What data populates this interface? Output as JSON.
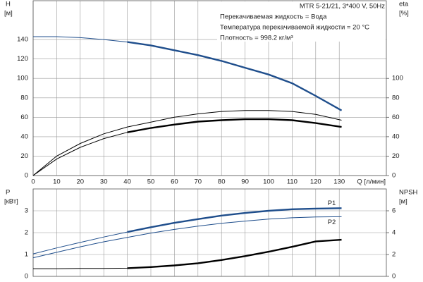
{
  "chart_data": [
    {
      "type": "line",
      "ylabel": "H",
      "yunit": "[м]",
      "y2label": "eta",
      "y2unit": "[%]",
      "xlabel": "Q [л/мин]",
      "annotations": [
        "MTR 5-21/21, 3*400 V, 50Hz",
        "Перекачиваемая жидкость = Вода",
        "Температура перекачиваемой жидкости = 20 °C",
        "Плотность = 998.2 кг/м³"
      ],
      "x": [
        0,
        10,
        20,
        30,
        40,
        50,
        60,
        70,
        80,
        90,
        100,
        110,
        120,
        131
      ],
      "xlim": [
        0,
        150
      ],
      "xticks": [
        0,
        10,
        20,
        30,
        40,
        50,
        60,
        70,
        80,
        90,
        100,
        110,
        120,
        130
      ],
      "xtick_labels": true,
      "ylim": [
        0,
        180
      ],
      "yticks": [
        0,
        20,
        40,
        60,
        80,
        100,
        120,
        140
      ],
      "y2lim": [
        0,
        180
      ],
      "y2ticks": [
        0,
        20,
        40,
        60,
        80,
        100
      ],
      "grid": true,
      "bold_from": 40,
      "series": [
        {
          "color": "#1f4e8c",
          "bold": true,
          "axis": "y",
          "values": [
            143,
            143,
            142,
            140,
            137.5,
            134,
            129,
            124,
            118,
            111,
            104,
            95,
            82,
            67
          ]
        },
        {
          "color": "#000000",
          "bold": false,
          "axis": "y2",
          "values": [
            0,
            20,
            33,
            43,
            50,
            55,
            60,
            63.5,
            66,
            67,
            67,
            66,
            63,
            57
          ]
        },
        {
          "color": "#000000",
          "bold": true,
          "axis": "y2",
          "values": [
            0,
            17,
            29,
            38,
            44.5,
            49,
            52.5,
            55.5,
            57,
            58,
            58,
            57,
            54,
            50
          ]
        }
      ]
    },
    {
      "type": "line",
      "ylabel": "P",
      "yunit": "[кВт]",
      "y2label": "NPSH",
      "y2unit": "[м]",
      "x": [
        0,
        10,
        20,
        30,
        40,
        50,
        60,
        70,
        80,
        90,
        100,
        110,
        120,
        131
      ],
      "xlim": [
        0,
        150
      ],
      "xticks": [
        0,
        10,
        20,
        30,
        40,
        50,
        60,
        70,
        80,
        90,
        100,
        110,
        120,
        130
      ],
      "xtick_labels": false,
      "ylim": [
        0,
        4
      ],
      "yticks": [
        0,
        1,
        2,
        3
      ],
      "y2lim": [
        0,
        8
      ],
      "y2ticks": [
        0,
        2,
        4,
        6
      ],
      "grid": true,
      "bold_from": 40,
      "series": [
        {
          "name": "P1",
          "color": "#1f4e8c",
          "bold": true,
          "axis": "y",
          "values": [
            1.03,
            1.3,
            1.55,
            1.8,
            2.03,
            2.25,
            2.45,
            2.62,
            2.78,
            2.9,
            3.0,
            3.07,
            3.1,
            3.12
          ]
        },
        {
          "name": "P2",
          "color": "#1f4e8c",
          "bold": false,
          "axis": "y",
          "values": [
            0.85,
            1.1,
            1.35,
            1.58,
            1.78,
            1.98,
            2.15,
            2.3,
            2.43,
            2.53,
            2.62,
            2.68,
            2.72,
            2.73
          ]
        },
        {
          "color": "#000000",
          "bold": true,
          "axis": "y2",
          "values": [
            0.7,
            0.7,
            0.72,
            0.73,
            0.75,
            0.85,
            1.0,
            1.2,
            1.5,
            1.85,
            2.25,
            2.7,
            3.2,
            3.35
          ]
        }
      ]
    }
  ]
}
